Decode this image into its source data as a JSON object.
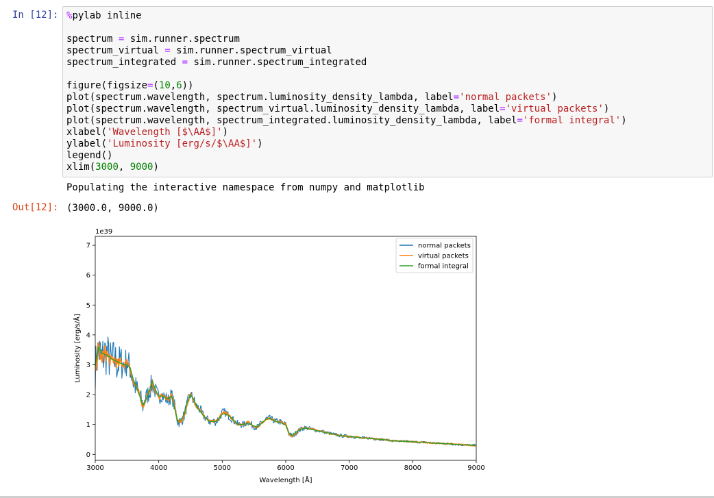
{
  "cell": {
    "in_prompt": "In [12]:",
    "out_prompt": "Out[12]:",
    "code_lines": [
      [
        {
          "t": "%",
          "c": "k-magic"
        },
        {
          "t": "pylab inline"
        }
      ],
      [],
      [
        {
          "t": "spectrum "
        },
        {
          "t": "=",
          "c": "k-op"
        },
        {
          "t": " sim.runner.spectrum"
        }
      ],
      [
        {
          "t": "spectrum_virtual "
        },
        {
          "t": "=",
          "c": "k-op"
        },
        {
          "t": " sim.runner.spectrum_virtual"
        }
      ],
      [
        {
          "t": "spectrum_integrated "
        },
        {
          "t": "=",
          "c": "k-op"
        },
        {
          "t": " sim.runner.spectrum_integrated"
        }
      ],
      [],
      [
        {
          "t": "figure(figsize"
        },
        {
          "t": "=",
          "c": "k-op"
        },
        {
          "t": "("
        },
        {
          "t": "10",
          "c": "k-num"
        },
        {
          "t": ","
        },
        {
          "t": "6",
          "c": "k-num"
        },
        {
          "t": "))"
        }
      ],
      [
        {
          "t": "plot(spectrum.wavelength, spectrum.luminosity_density_lambda, label"
        },
        {
          "t": "=",
          "c": "k-op"
        },
        {
          "t": "'normal packets'",
          "c": "k-str"
        },
        {
          "t": ")"
        }
      ],
      [
        {
          "t": "plot(spectrum.wavelength, spectrum_virtual.luminosity_density_lambda, label"
        },
        {
          "t": "=",
          "c": "k-op"
        },
        {
          "t": "'virtual packets'",
          "c": "k-str"
        },
        {
          "t": ")"
        }
      ],
      [
        {
          "t": "plot(spectrum.wavelength, spectrum_integrated.luminosity_density_lambda, label"
        },
        {
          "t": "=",
          "c": "k-op"
        },
        {
          "t": "'formal integral'",
          "c": "k-str"
        },
        {
          "t": ")"
        }
      ],
      [
        {
          "t": "xlabel("
        },
        {
          "t": "'Wavelength [$\\AA$]'",
          "c": "k-str"
        },
        {
          "t": ")"
        }
      ],
      [
        {
          "t": "ylabel("
        },
        {
          "t": "'Luminosity [erg/s/$\\AA$]'",
          "c": "k-str"
        },
        {
          "t": ")"
        }
      ],
      [
        {
          "t": "legend()"
        }
      ],
      [
        {
          "t": "xlim("
        },
        {
          "t": "3000",
          "c": "k-num"
        },
        {
          "t": ", "
        },
        {
          "t": "9000",
          "c": "k-num"
        },
        {
          "t": ")"
        }
      ]
    ],
    "stdout": "Populating the interactive namespace from numpy and matplotlib",
    "out_text": "(3000.0, 9000.0)"
  },
  "colors": {
    "normal": "#1f77b4",
    "virtual": "#ff7f0e",
    "integrated": "#2ca02c"
  },
  "chart_data": {
    "type": "line",
    "title": "",
    "xlabel": "Wavelength [Å]",
    "ylabel": "Luminosity [erg/s/Å]",
    "offset_text": "1e39",
    "xlim": [
      3000,
      9000
    ],
    "ylim": [
      -0.2,
      7.3
    ],
    "xticks": [
      3000,
      4000,
      5000,
      6000,
      7000,
      8000,
      9000
    ],
    "xtick_labels": [
      "3000",
      "4000",
      "5000",
      "6000",
      "7000",
      "8000",
      "9000"
    ],
    "yticks": [
      0,
      1,
      2,
      3,
      4,
      5,
      6,
      7
    ],
    "ytick_labels": [
      "0",
      "1",
      "2",
      "3",
      "4",
      "5",
      "6",
      "7"
    ],
    "grid": false,
    "legend": "top-right",
    "series_x": [
      3000,
      3050,
      3100,
      3150,
      3200,
      3250,
      3300,
      3350,
      3400,
      3450,
      3500,
      3550,
      3600,
      3650,
      3700,
      3750,
      3800,
      3850,
      3900,
      3950,
      4000,
      4050,
      4100,
      4150,
      4200,
      4250,
      4300,
      4350,
      4400,
      4450,
      4500,
      4550,
      4600,
      4650,
      4700,
      4750,
      4800,
      4850,
      4900,
      4950,
      5000,
      5050,
      5100,
      5150,
      5200,
      5250,
      5300,
      5350,
      5400,
      5450,
      5500,
      5550,
      5600,
      5650,
      5700,
      5750,
      5800,
      5850,
      5900,
      5950,
      6000,
      6050,
      6100,
      6150,
      6200,
      6250,
      6300,
      6400,
      6500,
      6600,
      6700,
      6800,
      6900,
      7000,
      7100,
      7200,
      7300,
      7400,
      7500,
      7600,
      7700,
      7800,
      7900,
      8000,
      8100,
      8200,
      8300,
      8400,
      8500,
      8600,
      8700,
      8800,
      8900,
      9000
    ],
    "series": [
      {
        "name": "normal packets",
        "color_key": "normal",
        "width": 1.1,
        "values": [
          2.9,
          3.5,
          3.2,
          3.4,
          3.3,
          3.1,
          3.2,
          3.0,
          3.1,
          3.0,
          3.1,
          2.9,
          2.4,
          2.2,
          2.0,
          1.6,
          1.9,
          2.1,
          2.4,
          2.1,
          1.9,
          2.0,
          1.9,
          1.8,
          2.0,
          1.6,
          1.1,
          1.1,
          1.3,
          1.7,
          2.0,
          1.8,
          1.6,
          1.5,
          1.3,
          1.2,
          1.1,
          1.1,
          1.1,
          1.2,
          1.4,
          1.4,
          1.3,
          1.2,
          1.1,
          1.0,
          1.0,
          1.0,
          1.1,
          1.0,
          0.95,
          0.9,
          1.0,
          1.1,
          1.2,
          1.2,
          1.15,
          1.1,
          1.1,
          1.05,
          1.0,
          0.7,
          0.6,
          0.7,
          0.8,
          0.85,
          0.9,
          0.85,
          0.8,
          0.75,
          0.7,
          0.65,
          0.62,
          0.6,
          0.58,
          0.55,
          0.55,
          0.52,
          0.5,
          0.48,
          0.45,
          0.44,
          0.43,
          0.42,
          0.41,
          0.4,
          0.38,
          0.37,
          0.36,
          0.35,
          0.33,
          0.32,
          0.31,
          0.3
        ],
        "noise": [
          0.7,
          0.8,
          0.8,
          0.8,
          0.75,
          0.7,
          0.7,
          0.65,
          0.6,
          0.55,
          0.5,
          0.5,
          0.45,
          0.4,
          0.35,
          0.3,
          0.3,
          0.35,
          0.4,
          0.3,
          0.25,
          0.25,
          0.25,
          0.25,
          0.25,
          0.25,
          0.2,
          0.2,
          0.2,
          0.2,
          0.22,
          0.2,
          0.2,
          0.18,
          0.15,
          0.15,
          0.15,
          0.15,
          0.15,
          0.15,
          0.15,
          0.15,
          0.14,
          0.13,
          0.13,
          0.12,
          0.12,
          0.12,
          0.12,
          0.12,
          0.12,
          0.12,
          0.12,
          0.12,
          0.12,
          0.12,
          0.11,
          0.11,
          0.11,
          0.1,
          0.1,
          0.1,
          0.1,
          0.09,
          0.09,
          0.09,
          0.08,
          0.08,
          0.07,
          0.07,
          0.06,
          0.06,
          0.06,
          0.05,
          0.05,
          0.05,
          0.05,
          0.05,
          0.04,
          0.04,
          0.04,
          0.04,
          0.04,
          0.04,
          0.04,
          0.04,
          0.04,
          0.04,
          0.04,
          0.04,
          0.04,
          0.04,
          0.04,
          0.04
        ]
      },
      {
        "name": "virtual packets",
        "color_key": "virtual",
        "width": 2.0,
        "values": [
          2.9,
          3.5,
          3.2,
          3.4,
          3.3,
          3.1,
          3.2,
          3.0,
          3.1,
          3.0,
          3.1,
          2.9,
          2.4,
          2.2,
          2.0,
          1.6,
          1.9,
          2.1,
          2.4,
          2.1,
          1.9,
          2.0,
          1.9,
          1.8,
          2.0,
          1.6,
          1.1,
          1.1,
          1.3,
          1.7,
          2.0,
          1.8,
          1.6,
          1.5,
          1.3,
          1.2,
          1.1,
          1.1,
          1.1,
          1.2,
          1.4,
          1.4,
          1.3,
          1.2,
          1.1,
          1.0,
          1.0,
          1.0,
          1.1,
          1.0,
          0.95,
          0.9,
          1.0,
          1.1,
          1.2,
          1.2,
          1.15,
          1.1,
          1.1,
          1.05,
          1.0,
          0.7,
          0.6,
          0.7,
          0.8,
          0.85,
          0.9,
          0.85,
          0.8,
          0.75,
          0.7,
          0.65,
          0.62,
          0.6,
          0.58,
          0.55,
          0.55,
          0.52,
          0.5,
          0.48,
          0.45,
          0.44,
          0.43,
          0.42,
          0.41,
          0.4,
          0.38,
          0.37,
          0.36,
          0.35,
          0.33,
          0.32,
          0.31,
          0.3
        ],
        "noise": [
          0.2,
          0.3,
          0.25,
          0.25,
          0.22,
          0.2,
          0.2,
          0.18,
          0.15,
          0.15,
          0.12,
          0.12,
          0.1,
          0.1,
          0.08,
          0.08,
          0.08,
          0.08,
          0.08,
          0.07,
          0.06,
          0.06,
          0.06,
          0.06,
          0.06,
          0.06,
          0.05,
          0.05,
          0.05,
          0.05,
          0.05,
          0.05,
          0.05,
          0.04,
          0.04,
          0.04,
          0.04,
          0.04,
          0.04,
          0.04,
          0.04,
          0.04,
          0.04,
          0.04,
          0.04,
          0.03,
          0.03,
          0.03,
          0.03,
          0.03,
          0.03,
          0.03,
          0.03,
          0.03,
          0.03,
          0.03,
          0.03,
          0.03,
          0.03,
          0.03,
          0.03,
          0.03,
          0.03,
          0.03,
          0.03,
          0.03,
          0.02,
          0.02,
          0.02,
          0.02,
          0.02,
          0.02,
          0.02,
          0.02,
          0.02,
          0.02,
          0.02,
          0.02,
          0.02,
          0.02,
          0.02,
          0.02,
          0.02,
          0.02,
          0.02,
          0.02,
          0.02,
          0.02,
          0.02,
          0.02,
          0.02,
          0.02,
          0.02,
          0.02
        ]
      },
      {
        "name": "formal integral",
        "color_key": "integrated",
        "width": 1.4,
        "values": [
          2.95,
          3.6,
          3.4,
          3.35,
          3.3,
          3.2,
          3.15,
          3.1,
          3.05,
          3.0,
          3.0,
          2.9,
          2.5,
          2.25,
          1.95,
          1.65,
          1.85,
          2.1,
          2.45,
          2.15,
          1.95,
          1.95,
          1.9,
          1.85,
          1.95,
          1.55,
          1.1,
          1.15,
          1.35,
          1.75,
          2.0,
          1.85,
          1.6,
          1.45,
          1.3,
          1.2,
          1.1,
          1.1,
          1.1,
          1.2,
          1.35,
          1.35,
          1.3,
          1.2,
          1.1,
          1.0,
          1.0,
          1.0,
          1.05,
          1.0,
          0.95,
          0.92,
          1.0,
          1.1,
          1.2,
          1.2,
          1.15,
          1.1,
          1.08,
          1.03,
          0.98,
          0.72,
          0.62,
          0.72,
          0.8,
          0.85,
          0.88,
          0.84,
          0.79,
          0.74,
          0.7,
          0.65,
          0.62,
          0.6,
          0.58,
          0.55,
          0.54,
          0.52,
          0.5,
          0.48,
          0.45,
          0.44,
          0.43,
          0.42,
          0.41,
          0.4,
          0.38,
          0.37,
          0.36,
          0.35,
          0.33,
          0.32,
          0.31,
          0.3
        ],
        "noise": []
      }
    ]
  }
}
